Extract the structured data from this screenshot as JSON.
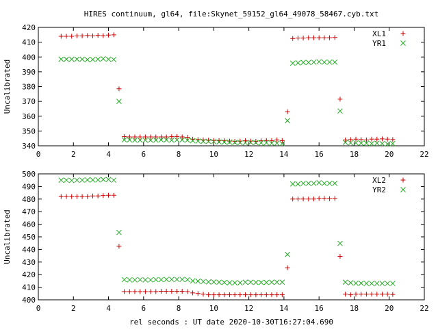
{
  "title": "HIRES continuum, gl64, file:Skynet_59152_gl64_49078_58467.cyb.txt",
  "chart_data": [
    {
      "type": "scatter",
      "ylabel": "Uncalibrated",
      "xlabel": "",
      "xlim": [
        0,
        22
      ],
      "ylim": [
        340,
        420
      ],
      "xticks": [
        0,
        2,
        4,
        6,
        8,
        10,
        12,
        14,
        16,
        18,
        20,
        22
      ],
      "yticks": [
        340,
        350,
        360,
        370,
        380,
        390,
        400,
        410,
        420
      ],
      "legend_position": "top-right",
      "series": [
        {
          "name": "XL1",
          "marker": "plus",
          "color": "#cc0000",
          "points": [
            [
              1.3,
              414
            ],
            [
              1.6,
              414
            ],
            [
              1.9,
              414
            ],
            [
              2.2,
              414.2
            ],
            [
              2.5,
              414.2
            ],
            [
              2.8,
              414.5
            ],
            [
              3.1,
              414.3
            ],
            [
              3.4,
              414.6
            ],
            [
              3.7,
              414.4
            ],
            [
              4.0,
              414.8
            ],
            [
              4.3,
              415
            ],
            [
              4.6,
              378.5
            ],
            [
              4.9,
              346.2
            ],
            [
              5.2,
              346
            ],
            [
              5.5,
              346
            ],
            [
              5.8,
              346
            ],
            [
              6.1,
              346
            ],
            [
              6.4,
              346
            ],
            [
              6.7,
              346
            ],
            [
              7.0,
              346
            ],
            [
              7.3,
              346
            ],
            [
              7.6,
              346.2
            ],
            [
              7.9,
              346.3
            ],
            [
              8.2,
              346
            ],
            [
              8.5,
              345.8
            ],
            [
              8.8,
              344.5
            ],
            [
              9.1,
              344.2
            ],
            [
              9.4,
              344
            ],
            [
              9.7,
              343.8
            ],
            [
              10.0,
              343.6
            ],
            [
              10.3,
              343.5
            ],
            [
              10.6,
              343.5
            ],
            [
              10.9,
              343.2
            ],
            [
              11.2,
              343
            ],
            [
              11.5,
              343.2
            ],
            [
              11.8,
              343.4
            ],
            [
              12.1,
              343.2
            ],
            [
              12.4,
              343
            ],
            [
              12.7,
              343.4
            ],
            [
              13.0,
              343.6
            ],
            [
              13.3,
              343.5
            ],
            [
              13.6,
              344
            ],
            [
              13.9,
              343.5
            ],
            [
              14.2,
              363
            ],
            [
              14.5,
              412.5
            ],
            [
              14.8,
              412.8
            ],
            [
              15.1,
              412.8
            ],
            [
              15.4,
              413
            ],
            [
              15.7,
              413
            ],
            [
              16.0,
              413
            ],
            [
              16.3,
              413
            ],
            [
              16.6,
              413
            ],
            [
              16.9,
              413.2
            ],
            [
              17.2,
              371.5
            ],
            [
              17.5,
              344
            ],
            [
              17.8,
              344.2
            ],
            [
              18.1,
              344.5
            ],
            [
              18.4,
              344.2
            ],
            [
              18.7,
              344
            ],
            [
              19.0,
              344.5
            ],
            [
              19.3,
              344.5
            ],
            [
              19.6,
              344.7
            ],
            [
              19.9,
              344.5
            ],
            [
              20.2,
              344.2
            ]
          ]
        },
        {
          "name": "YR1",
          "marker": "cross",
          "color": "#22aa22",
          "points": [
            [
              1.3,
              398.5
            ],
            [
              1.6,
              398.5
            ],
            [
              1.9,
              398.5
            ],
            [
              2.2,
              398.5
            ],
            [
              2.5,
              398.5
            ],
            [
              2.8,
              398.2
            ],
            [
              3.1,
              398.3
            ],
            [
              3.4,
              398.5
            ],
            [
              3.7,
              398.8
            ],
            [
              4.0,
              398.5
            ],
            [
              4.3,
              398.3
            ],
            [
              4.6,
              370
            ],
            [
              4.9,
              344
            ],
            [
              5.2,
              344
            ],
            [
              5.5,
              343.8
            ],
            [
              5.8,
              343.8
            ],
            [
              6.1,
              343.8
            ],
            [
              6.4,
              343.8
            ],
            [
              6.7,
              343.8
            ],
            [
              7.0,
              344
            ],
            [
              7.3,
              344
            ],
            [
              7.6,
              343.8
            ],
            [
              7.9,
              344
            ],
            [
              8.2,
              344
            ],
            [
              8.5,
              343.8
            ],
            [
              8.8,
              343.5
            ],
            [
              9.1,
              343.2
            ],
            [
              9.4,
              343
            ],
            [
              9.7,
              343
            ],
            [
              10.0,
              342.8
            ],
            [
              10.3,
              342.6
            ],
            [
              10.6,
              342.5
            ],
            [
              10.9,
              342.5
            ],
            [
              11.2,
              342.3
            ],
            [
              11.5,
              342.2
            ],
            [
              11.8,
              342
            ],
            [
              12.1,
              342.3
            ],
            [
              12.4,
              342.2
            ],
            [
              12.7,
              342
            ],
            [
              13.0,
              342
            ],
            [
              13.3,
              341.8
            ],
            [
              13.6,
              341.8
            ],
            [
              13.9,
              341.5
            ],
            [
              14.2,
              357
            ],
            [
              14.5,
              395.8
            ],
            [
              14.8,
              396
            ],
            [
              15.1,
              396.3
            ],
            [
              15.4,
              396.3
            ],
            [
              15.7,
              396.5
            ],
            [
              16.0,
              396.8
            ],
            [
              16.3,
              396.5
            ],
            [
              16.6,
              396.5
            ],
            [
              16.9,
              396.5
            ],
            [
              17.2,
              363.5
            ],
            [
              17.5,
              342.3
            ],
            [
              17.8,
              342
            ],
            [
              18.1,
              342
            ],
            [
              18.4,
              341.8
            ],
            [
              18.7,
              341.8
            ],
            [
              19.0,
              341.5
            ],
            [
              19.3,
              341.8
            ],
            [
              19.6,
              341.5
            ],
            [
              19.9,
              341.2
            ],
            [
              20.2,
              341.5
            ]
          ]
        }
      ]
    },
    {
      "type": "scatter",
      "ylabel": "Uncalibrated",
      "xlabel": "rel seconds : UT date 2020-10-30T16:27:04.690",
      "xlim": [
        0,
        22
      ],
      "ylim": [
        400,
        500
      ],
      "xticks": [
        0,
        2,
        4,
        6,
        8,
        10,
        12,
        14,
        16,
        18,
        20,
        22
      ],
      "yticks": [
        400,
        410,
        420,
        430,
        440,
        450,
        460,
        470,
        480,
        490,
        500
      ],
      "legend_position": "top-right",
      "series": [
        {
          "name": "XL2",
          "marker": "plus",
          "color": "#cc0000",
          "points": [
            [
              1.3,
              482
            ],
            [
              1.6,
              482
            ],
            [
              1.9,
              482
            ],
            [
              2.2,
              482
            ],
            [
              2.5,
              482
            ],
            [
              2.8,
              482
            ],
            [
              3.1,
              482.5
            ],
            [
              3.4,
              482.5
            ],
            [
              3.7,
              482.8
            ],
            [
              4.0,
              483
            ],
            [
              4.3,
              483
            ],
            [
              4.6,
              442.5
            ],
            [
              4.9,
              406.5
            ],
            [
              5.2,
              406.5
            ],
            [
              5.5,
              406.5
            ],
            [
              5.8,
              406.5
            ],
            [
              6.1,
              406.5
            ],
            [
              6.4,
              406.5
            ],
            [
              6.7,
              406.5
            ],
            [
              7.0,
              406.8
            ],
            [
              7.3,
              406.8
            ],
            [
              7.6,
              406.8
            ],
            [
              7.9,
              406.8
            ],
            [
              8.2,
              406.8
            ],
            [
              8.5,
              406.5
            ],
            [
              8.8,
              405.5
            ],
            [
              9.1,
              405
            ],
            [
              9.4,
              404.5
            ],
            [
              9.7,
              404
            ],
            [
              10.0,
              404
            ],
            [
              10.3,
              404
            ],
            [
              10.6,
              404
            ],
            [
              10.9,
              404
            ],
            [
              11.2,
              404
            ],
            [
              11.5,
              404
            ],
            [
              11.8,
              404
            ],
            [
              12.1,
              404
            ],
            [
              12.4,
              404
            ],
            [
              12.7,
              404
            ],
            [
              13.0,
              404
            ],
            [
              13.3,
              404
            ],
            [
              13.6,
              404
            ],
            [
              13.9,
              404
            ],
            [
              14.2,
              425.5
            ],
            [
              14.5,
              480
            ],
            [
              14.8,
              480
            ],
            [
              15.1,
              480
            ],
            [
              15.4,
              480
            ],
            [
              15.7,
              480
            ],
            [
              16.0,
              480.5
            ],
            [
              16.3,
              480.5
            ],
            [
              16.6,
              480.3
            ],
            [
              16.9,
              480.5
            ],
            [
              17.2,
              434.5
            ],
            [
              17.5,
              404.5
            ],
            [
              17.8,
              404
            ],
            [
              18.1,
              404.5
            ],
            [
              18.4,
              404.5
            ],
            [
              18.7,
              404.5
            ],
            [
              19.0,
              404.5
            ],
            [
              19.3,
              404.5
            ],
            [
              19.6,
              404.5
            ],
            [
              19.9,
              404.5
            ],
            [
              20.2,
              404.3
            ]
          ]
        },
        {
          "name": "YR2",
          "marker": "cross",
          "color": "#22aa22",
          "points": [
            [
              1.3,
              495
            ],
            [
              1.6,
              495
            ],
            [
              1.9,
              494.8
            ],
            [
              2.2,
              495
            ],
            [
              2.5,
              495
            ],
            [
              2.8,
              495.2
            ],
            [
              3.1,
              495.2
            ],
            [
              3.4,
              495.2
            ],
            [
              3.7,
              495.5
            ],
            [
              4.0,
              495.5
            ],
            [
              4.3,
              495
            ],
            [
              4.6,
              453.5
            ],
            [
              4.9,
              416
            ],
            [
              5.2,
              415.8
            ],
            [
              5.5,
              415.8
            ],
            [
              5.8,
              416
            ],
            [
              6.1,
              415.8
            ],
            [
              6.4,
              415.8
            ],
            [
              6.7,
              416
            ],
            [
              7.0,
              416
            ],
            [
              7.3,
              416.2
            ],
            [
              7.6,
              416.2
            ],
            [
              7.9,
              416.2
            ],
            [
              8.2,
              416.2
            ],
            [
              8.5,
              416
            ],
            [
              8.8,
              415
            ],
            [
              9.1,
              414.8
            ],
            [
              9.4,
              414.5
            ],
            [
              9.7,
              414.2
            ],
            [
              10.0,
              414.2
            ],
            [
              10.3,
              414
            ],
            [
              10.6,
              413.8
            ],
            [
              10.9,
              413.5
            ],
            [
              11.2,
              413.5
            ],
            [
              11.5,
              413.5
            ],
            [
              11.8,
              414
            ],
            [
              12.1,
              414
            ],
            [
              12.4,
              413.8
            ],
            [
              12.7,
              413.8
            ],
            [
              13.0,
              413.8
            ],
            [
              13.3,
              414
            ],
            [
              13.6,
              414
            ],
            [
              13.9,
              414
            ],
            [
              14.2,
              436
            ],
            [
              14.5,
              492
            ],
            [
              14.8,
              492
            ],
            [
              15.1,
              492.5
            ],
            [
              15.4,
              492.5
            ],
            [
              15.7,
              492.5
            ],
            [
              16.0,
              493
            ],
            [
              16.3,
              492.5
            ],
            [
              16.6,
              492.5
            ],
            [
              16.9,
              492.5
            ],
            [
              17.2,
              444.8
            ],
            [
              17.5,
              414
            ],
            [
              17.8,
              413.5
            ],
            [
              18.1,
              413.2
            ],
            [
              18.4,
              413.2
            ],
            [
              18.7,
              413
            ],
            [
              19.0,
              413
            ],
            [
              19.3,
              413
            ],
            [
              19.6,
              413
            ],
            [
              19.9,
              413
            ],
            [
              20.2,
              413
            ]
          ]
        }
      ]
    }
  ]
}
